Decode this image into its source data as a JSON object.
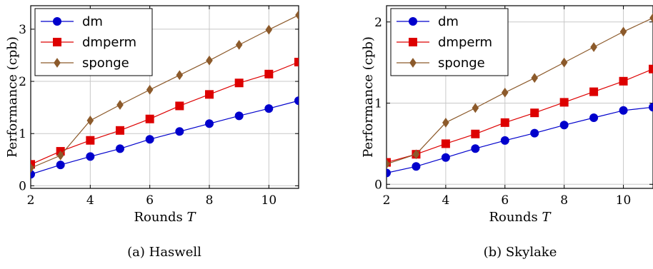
{
  "chart_data": [
    {
      "type": "line",
      "caption": "(a) Haswell",
      "xlabel": "Rounds T",
      "ylabel": "Performance (cpb)",
      "x": [
        2,
        3,
        4,
        5,
        6,
        7,
        8,
        9,
        10,
        11
      ],
      "xlim": [
        2,
        11
      ],
      "ylim": [
        -0.05,
        3.45
      ],
      "xticks": [
        2,
        4,
        6,
        8,
        10
      ],
      "yticks": [
        0,
        1,
        2,
        3
      ],
      "grid": true,
      "legend_position": "top-left",
      "series": [
        {
          "name": "dm",
          "color": "#0000cc",
          "marker": "circle",
          "values": [
            0.22,
            0.4,
            0.56,
            0.71,
            0.89,
            1.04,
            1.19,
            1.34,
            1.48,
            1.63
          ]
        },
        {
          "name": "dmperm",
          "color": "#dd0000",
          "marker": "square",
          "values": [
            0.41,
            0.66,
            0.87,
            1.06,
            1.28,
            1.53,
            1.75,
            1.97,
            2.14,
            2.37
          ]
        },
        {
          "name": "sponge",
          "color": "#8c5a2b",
          "marker": "diamond",
          "values": [
            0.34,
            0.58,
            1.25,
            1.55,
            1.84,
            2.12,
            2.4,
            2.7,
            2.99,
            3.27
          ]
        }
      ]
    },
    {
      "type": "line",
      "caption": "(b) Skylake",
      "xlabel": "Rounds T",
      "ylabel": "Performance (cpb)",
      "x": [
        2,
        3,
        4,
        5,
        6,
        7,
        8,
        9,
        10,
        11
      ],
      "xlim": [
        2,
        11
      ],
      "ylim": [
        -0.05,
        2.2
      ],
      "xticks": [
        2,
        4,
        6,
        8,
        10
      ],
      "yticks": [
        0,
        1,
        2
      ],
      "grid": true,
      "legend_position": "top-left",
      "series": [
        {
          "name": "dm",
          "color": "#0000cc",
          "marker": "circle",
          "values": [
            0.14,
            0.22,
            0.33,
            0.44,
            0.54,
            0.63,
            0.73,
            0.82,
            0.91,
            0.95
          ]
        },
        {
          "name": "dmperm",
          "color": "#dd0000",
          "marker": "square",
          "values": [
            0.27,
            0.37,
            0.5,
            0.62,
            0.76,
            0.88,
            1.01,
            1.14,
            1.27,
            1.42
          ]
        },
        {
          "name": "sponge",
          "color": "#8c5a2b",
          "marker": "diamond",
          "values": [
            0.25,
            0.37,
            0.76,
            0.94,
            1.13,
            1.31,
            1.5,
            1.69,
            1.88,
            2.05
          ]
        }
      ]
    }
  ]
}
